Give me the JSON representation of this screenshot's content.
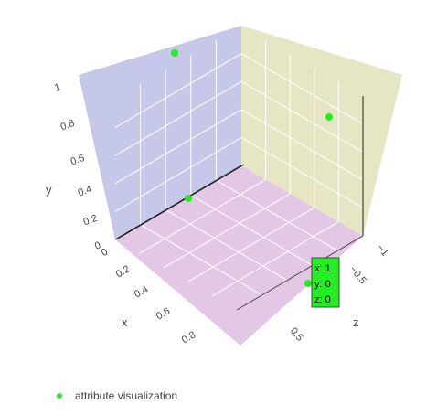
{
  "chart_data": {
    "type": "scatter3d",
    "series": [
      {
        "name": "attribute visualization",
        "color": "#22ee22",
        "points": [
          {
            "x": 0,
            "y": 1,
            "z": -1
          },
          {
            "x": 0,
            "y": 0,
            "z": 0
          },
          {
            "x": 0,
            "y": 0.5,
            "z": -0.5
          },
          {
            "x": 1,
            "y": 0,
            "z": 0
          }
        ]
      }
    ],
    "axes": {
      "x": {
        "title": "x",
        "range": [
          0,
          1
        ],
        "ticks": [
          "0",
          "0.2",
          "0.4",
          "0.6",
          "0.8"
        ]
      },
      "y": {
        "title": "y",
        "range": [
          0,
          1
        ],
        "ticks": [
          "0",
          "0.2",
          "0.4",
          "0.6",
          "0.8",
          "1"
        ]
      },
      "z": {
        "title": "z",
        "range": [
          -1,
          0
        ],
        "ticks": [
          "−1",
          "−0.5",
          "0.5"
        ]
      }
    },
    "planes": {
      "xy": "#c5c8e8",
      "yz": "#e6e6c4",
      "xz": "#e3c8e6"
    },
    "hover": {
      "lines": [
        "x: 1",
        "y: 0",
        "z: 0"
      ],
      "background": "#22ee22"
    },
    "grid": true,
    "legend_position": "bottom-left"
  }
}
